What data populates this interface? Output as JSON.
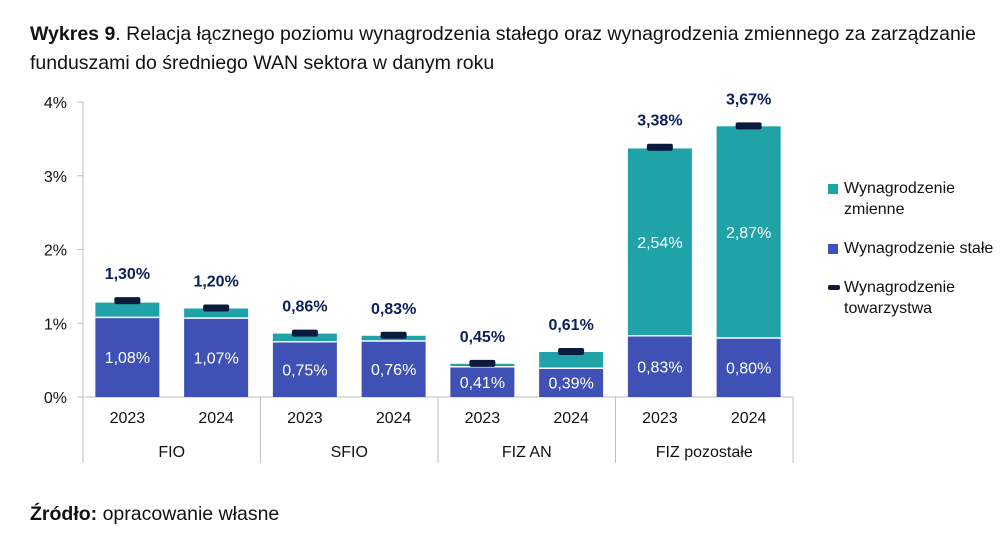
{
  "title": {
    "bold": "Wykres 9",
    "rest": ". Relacja łącznego poziomu wynagrodzenia stałego oraz wynagrodzenia zmiennego za zarządzanie funduszami do średniego WAN sektora w danym roku"
  },
  "source": {
    "bold": "Źródło:",
    "rest": " opracowanie własne"
  },
  "colors": {
    "fixed": "#3F51B5",
    "variable": "#1FA2A8",
    "company": "#0B1A3D",
    "total_label": "#0B1F5C",
    "axis": "#bfbfbf"
  },
  "legend": [
    {
      "key": "variable",
      "label": "Wynagrodzenie zmienne"
    },
    {
      "key": "fixed",
      "label": "Wynagrodzenie stałe"
    },
    {
      "key": "company",
      "label": "Wynagrodzenie towarzystwa"
    }
  ],
  "chart_data": {
    "type": "bar",
    "stacked": true,
    "ylim": [
      0,
      4
    ],
    "yticks": [
      {
        "value": 0,
        "label": "0%"
      },
      {
        "value": 1,
        "label": "1%"
      },
      {
        "value": 2,
        "label": "2%"
      },
      {
        "value": 3,
        "label": "3%"
      },
      {
        "value": 4,
        "label": "4%"
      }
    ],
    "groups": [
      {
        "name": "FIO",
        "bars": [
          {
            "year": "2023",
            "fixed": 1.08,
            "fixed_label": "1,08%",
            "variable": 0.2,
            "total": 1.3,
            "total_label": "1,30%"
          },
          {
            "year": "2024",
            "fixed": 1.07,
            "fixed_label": "1,07%",
            "variable": 0.13,
            "total": 1.2,
            "total_label": "1,20%"
          }
        ]
      },
      {
        "name": "SFIO",
        "bars": [
          {
            "year": "2023",
            "fixed": 0.75,
            "fixed_label": "0,75%",
            "variable": 0.11,
            "total": 0.86,
            "total_label": "0,86%"
          },
          {
            "year": "2024",
            "fixed": 0.76,
            "fixed_label": "0,76%",
            "variable": 0.07,
            "total": 0.83,
            "total_label": "0,83%"
          }
        ]
      },
      {
        "name": "FIZ AN",
        "bars": [
          {
            "year": "2023",
            "fixed": 0.41,
            "fixed_label": "0,41%",
            "variable": 0.04,
            "total": 0.45,
            "total_label": "0,45%"
          },
          {
            "year": "2024",
            "fixed": 0.39,
            "fixed_label": "0,39%",
            "variable": 0.22,
            "total": 0.61,
            "total_label": "0,61%"
          }
        ]
      },
      {
        "name": "FIZ pozostałe",
        "bars": [
          {
            "year": "2023",
            "fixed": 0.83,
            "fixed_label": "0,83%",
            "variable": 2.54,
            "variable_label": "2,54%",
            "total": 3.38,
            "total_label": "3,38%"
          },
          {
            "year": "2024",
            "fixed": 0.8,
            "fixed_label": "0,80%",
            "variable": 2.87,
            "variable_label": "2,87%",
            "total": 3.67,
            "total_label": "3,67%"
          }
        ]
      }
    ]
  }
}
